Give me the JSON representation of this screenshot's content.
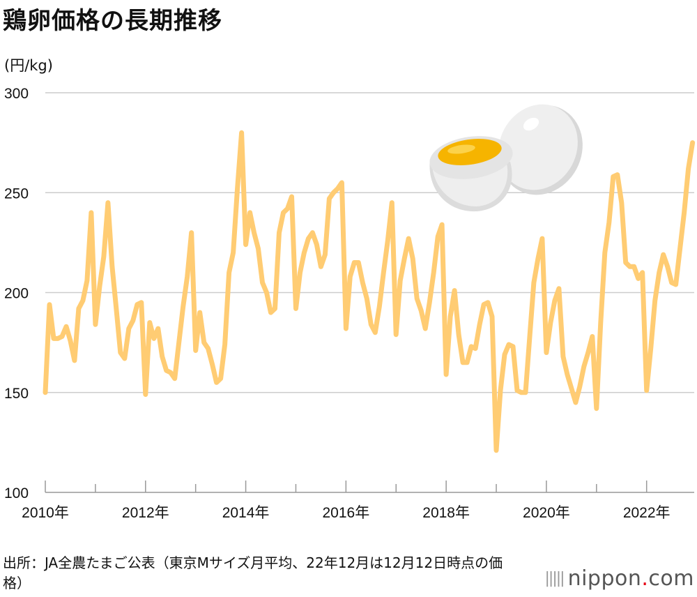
{
  "title": "鶏卵価格の長期推移",
  "unit_label": "(円/kg)",
  "source": "出所：JA全農たまご公表（東京Mサイズ月平均、22年12月は12月12日時点の価格）",
  "logo": {
    "text": "nippon",
    "dot": ".",
    "suffix": "com"
  },
  "colors": {
    "line": "#FFCC73",
    "grid": "#CCCCCC",
    "axis": "#999999"
  },
  "chart_data": {
    "type": "line",
    "title": "鶏卵価格の長期推移",
    "ylabel": "(円/kg)",
    "xlabel": "",
    "ylim": [
      100,
      300
    ],
    "yticks": [
      100,
      150,
      200,
      250,
      300
    ],
    "xlim": [
      2010.0,
      2022.95
    ],
    "xticks": [
      {
        "value": 2010,
        "label": "2010年"
      },
      {
        "value": 2012,
        "label": "2012年"
      },
      {
        "value": 2014,
        "label": "2014年"
      },
      {
        "value": 2016,
        "label": "2016年"
      },
      {
        "value": 2018,
        "label": "2018年"
      },
      {
        "value": 2020,
        "label": "2020年"
      },
      {
        "value": 2022,
        "label": "2022年"
      }
    ],
    "grid": true,
    "series": [
      {
        "values": [
          150,
          194,
          177,
          177,
          178,
          183,
          176,
          166,
          192,
          196,
          206,
          240,
          184,
          203,
          218,
          245,
          213,
          192,
          170,
          167,
          182,
          186,
          194,
          195,
          149,
          185,
          177,
          182,
          168,
          161,
          160,
          157,
          175,
          193,
          208,
          230,
          171,
          190,
          175,
          172,
          164,
          155,
          157,
          174,
          210,
          220,
          252,
          280,
          224,
          240,
          230,
          222,
          205,
          200,
          190,
          192,
          230,
          240,
          242,
          248,
          192,
          210,
          220,
          227,
          230,
          224,
          213,
          219,
          247,
          250,
          252,
          255,
          182,
          208,
          215,
          215,
          205,
          197,
          184,
          180,
          193,
          210,
          226,
          245,
          179,
          206,
          217,
          227,
          217,
          197,
          191,
          182,
          195,
          210,
          228,
          234,
          159,
          188,
          201,
          179,
          165,
          165,
          173,
          172,
          184,
          194,
          195,
          188,
          121,
          151,
          169,
          174,
          173,
          151,
          150,
          150,
          178,
          205,
          217,
          227,
          170,
          185,
          196,
          202,
          168,
          159,
          152,
          145,
          153,
          163,
          170,
          178,
          142,
          185,
          220,
          235,
          258,
          259,
          245,
          215,
          213,
          213,
          207,
          210,
          151,
          172,
          196,
          210,
          219,
          213,
          205,
          204,
          222,
          240,
          262,
          275
        ]
      }
    ]
  }
}
